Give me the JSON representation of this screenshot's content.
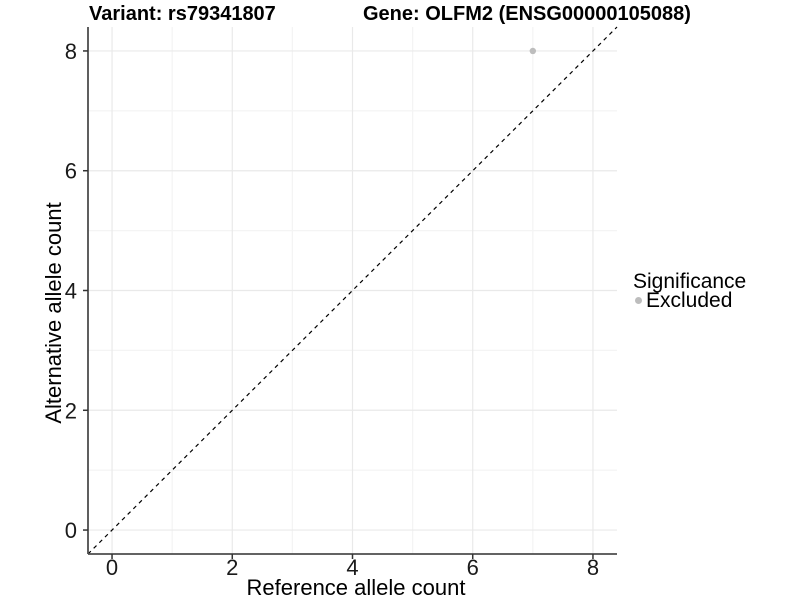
{
  "chart_data": {
    "type": "scatter",
    "title_left": "Variant: rs79341807",
    "title_right": "Gene: OLFM2 (ENSG00000105088)",
    "xlabel": "Reference allele count",
    "ylabel": "Alternative allele count",
    "xlim": [
      -0.4,
      8.4
    ],
    "ylim": [
      -0.4,
      8.4
    ],
    "x_ticks": [
      0,
      2,
      4,
      6,
      8
    ],
    "y_ticks": [
      0,
      2,
      4,
      6,
      8
    ],
    "x_minor_ticks": [
      1,
      3,
      5,
      7
    ],
    "y_minor_ticks": [
      1,
      3,
      5,
      7
    ],
    "grid": "on",
    "identity_line": {
      "style": "dashed",
      "slope": 1,
      "intercept": 0,
      "color": "#000000"
    },
    "series": [
      {
        "name": "Excluded",
        "color": "#bdbdbd",
        "points": [
          {
            "x": 7,
            "y": 8
          }
        ]
      }
    ],
    "legend": {
      "title": "Significance",
      "position": "right",
      "items": [
        {
          "label": "Excluded",
          "color": "#bdbdbd"
        }
      ]
    },
    "style": {
      "axis_color": "#4d4d4d",
      "tick_color": "#333333",
      "grid_major_color": "#e9e9e9",
      "grid_minor_color": "#f4f4f4",
      "text_color": "#000000",
      "background": "#ffffff"
    }
  }
}
